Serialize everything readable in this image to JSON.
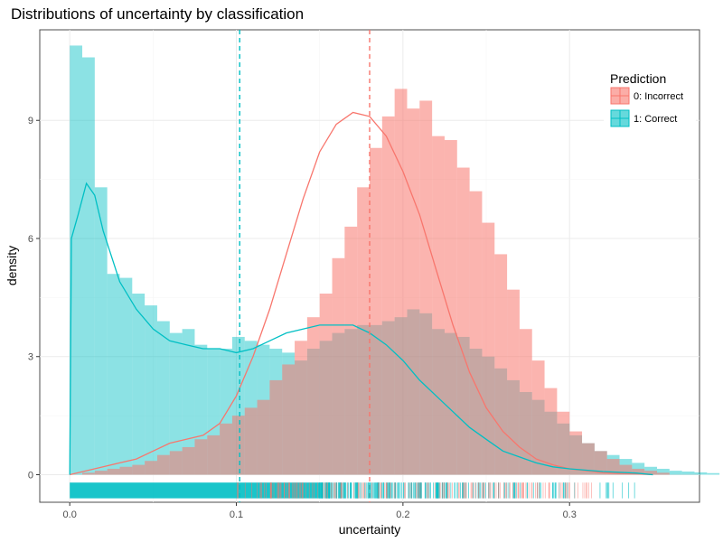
{
  "chart_data": {
    "type": "histogram-density",
    "title": "Distributions of uncertainty by classification",
    "xlabel": "uncertainty",
    "ylabel": "density",
    "xlim": [
      -0.018,
      0.378
    ],
    "ylim": [
      -0.7,
      11.3
    ],
    "x_ticks": [
      0.0,
      0.1,
      0.2,
      0.3
    ],
    "x_tick_labels": [
      "0.0",
      "0.1",
      "0.2",
      "0.3"
    ],
    "y_ticks": [
      0,
      3,
      6,
      9
    ],
    "y_tick_labels": [
      "0",
      "3",
      "6",
      "9"
    ],
    "grid": true,
    "legend": {
      "title": "Prediction",
      "position": "top-right",
      "entries": [
        "0: Incorrect",
        "1: Correct"
      ]
    },
    "bin_width": 0.0075,
    "series": [
      {
        "name": "0: Incorrect",
        "color": "#F8766D",
        "bin_start": 0.0,
        "hist_values": [
          0,
          0.05,
          0.1,
          0.15,
          0.2,
          0.25,
          0.35,
          0.5,
          0.6,
          0.7,
          0.9,
          1.0,
          1.3,
          1.5,
          1.7,
          1.9,
          2.4,
          2.8,
          3.4,
          4.0,
          4.6,
          5.5,
          6.3,
          7.3,
          8.3,
          9.1,
          9.8,
          9.3,
          9.5,
          8.6,
          8.5,
          7.8,
          7.2,
          6.4,
          5.6,
          4.7,
          3.7,
          2.9,
          2.2,
          1.6,
          1.1,
          0.8,
          0.6,
          0.4,
          0.25,
          0.15,
          0.1,
          0.05
        ],
        "density_curve": {
          "x": [
            0.0,
            0.01,
            0.02,
            0.03,
            0.04,
            0.05,
            0.06,
            0.07,
            0.08,
            0.09,
            0.1,
            0.11,
            0.12,
            0.13,
            0.14,
            0.15,
            0.16,
            0.17,
            0.18,
            0.19,
            0.2,
            0.21,
            0.22,
            0.23,
            0.24,
            0.25,
            0.26,
            0.27,
            0.28,
            0.29,
            0.3,
            0.31,
            0.32,
            0.33,
            0.34,
            0.35
          ],
          "y": [
            0.0,
            0.1,
            0.2,
            0.3,
            0.4,
            0.6,
            0.8,
            0.9,
            1.0,
            1.3,
            2.0,
            3.0,
            4.2,
            5.6,
            7.0,
            8.2,
            8.9,
            9.2,
            9.1,
            8.6,
            7.7,
            6.6,
            5.2,
            3.8,
            2.6,
            1.7,
            1.1,
            0.7,
            0.4,
            0.25,
            0.15,
            0.1,
            0.05,
            0.03,
            0.02,
            0.0
          ]
        },
        "mean": 0.18
      },
      {
        "name": "1: Correct",
        "color": "#00BFC4",
        "bin_start": 0.0,
        "hist_values": [
          10.9,
          10.6,
          7.3,
          5.1,
          5.0,
          4.6,
          4.3,
          3.9,
          3.6,
          3.7,
          3.3,
          3.2,
          3.2,
          3.5,
          3.4,
          3.3,
          3.2,
          3.1,
          2.9,
          3.2,
          3.4,
          3.6,
          3.7,
          3.8,
          3.8,
          3.9,
          4.0,
          4.2,
          4.1,
          3.7,
          3.6,
          3.5,
          3.2,
          3.0,
          2.7,
          2.4,
          2.1,
          1.9,
          1.6,
          1.3,
          1.0,
          0.8,
          0.6,
          0.5,
          0.4,
          0.3,
          0.2,
          0.15,
          0.1,
          0.08,
          0.06,
          0.04
        ],
        "density_curve": {
          "x": [
            0.0,
            0.001,
            0.005,
            0.01,
            0.015,
            0.02,
            0.03,
            0.04,
            0.05,
            0.06,
            0.07,
            0.08,
            0.09,
            0.1,
            0.11,
            0.12,
            0.13,
            0.14,
            0.15,
            0.16,
            0.17,
            0.18,
            0.19,
            0.2,
            0.21,
            0.22,
            0.23,
            0.24,
            0.25,
            0.26,
            0.27,
            0.28,
            0.29,
            0.3,
            0.32,
            0.34,
            0.35
          ],
          "y": [
            0.0,
            6.0,
            6.6,
            7.4,
            7.1,
            6.2,
            4.9,
            4.2,
            3.7,
            3.4,
            3.3,
            3.2,
            3.2,
            3.1,
            3.2,
            3.4,
            3.6,
            3.7,
            3.8,
            3.8,
            3.8,
            3.6,
            3.3,
            2.9,
            2.4,
            2.0,
            1.6,
            1.2,
            0.9,
            0.6,
            0.45,
            0.3,
            0.2,
            0.15,
            0.08,
            0.04,
            0.0
          ]
        },
        "mean": 0.102
      }
    ],
    "rug": {
      "incorrect_range": [
        0.1,
        0.315
      ],
      "correct_range": [
        0.0,
        0.355
      ]
    }
  }
}
